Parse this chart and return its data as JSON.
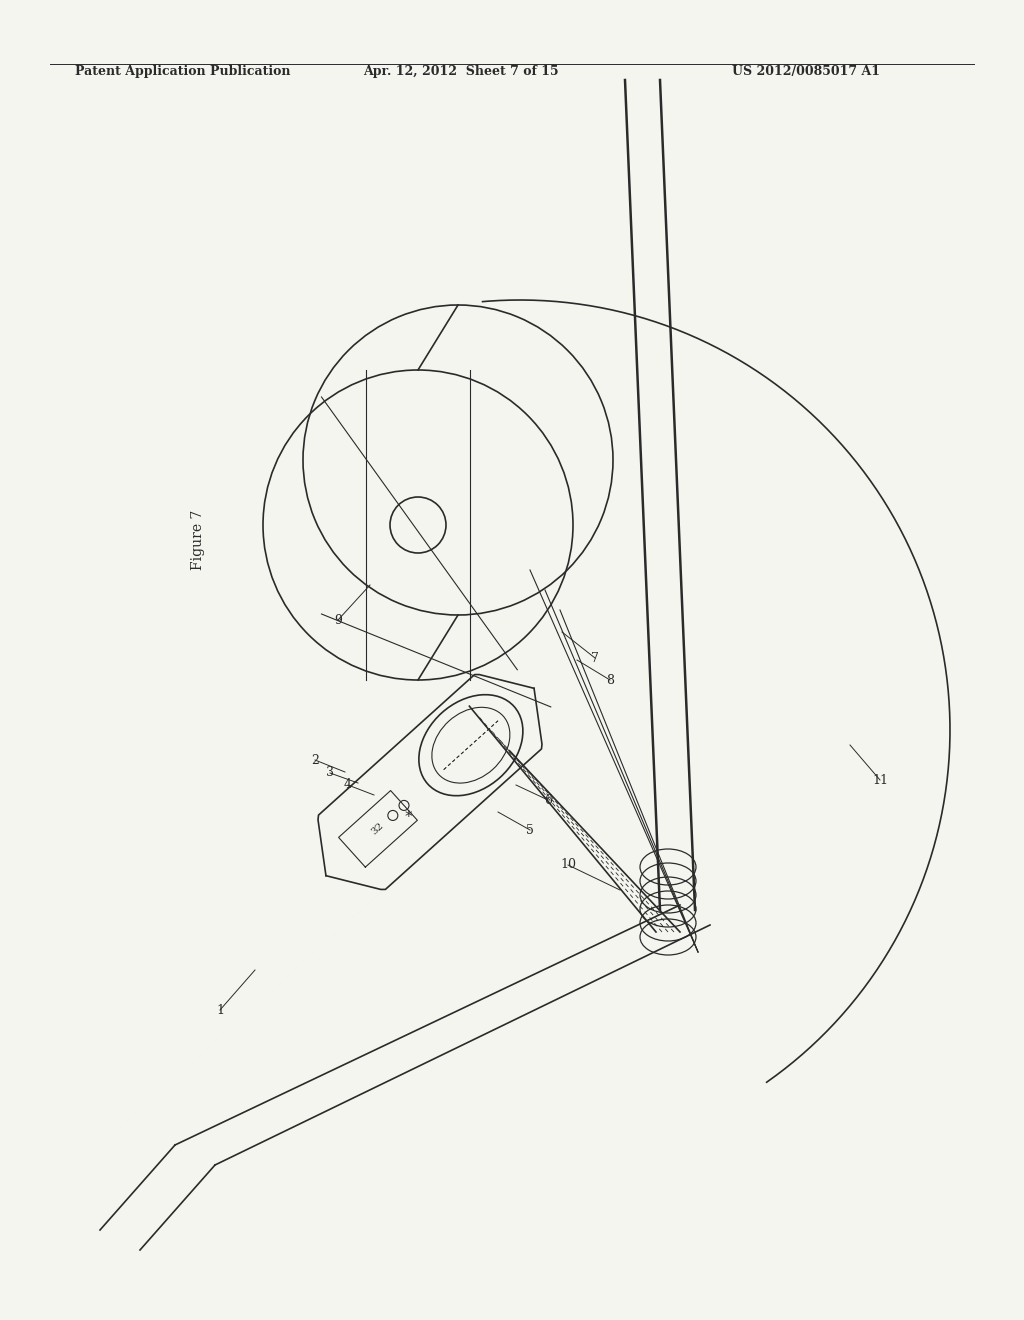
{
  "header_left": "Patent Application Publication",
  "header_center": "Apr. 12, 2012  Sheet 7 of 15",
  "header_right": "US 2012/0085017 A1",
  "figure_label": "Figure 7",
  "bg_color": "#f5f5f0",
  "lc": "#2a2a2a",
  "lc2": "#444444"
}
